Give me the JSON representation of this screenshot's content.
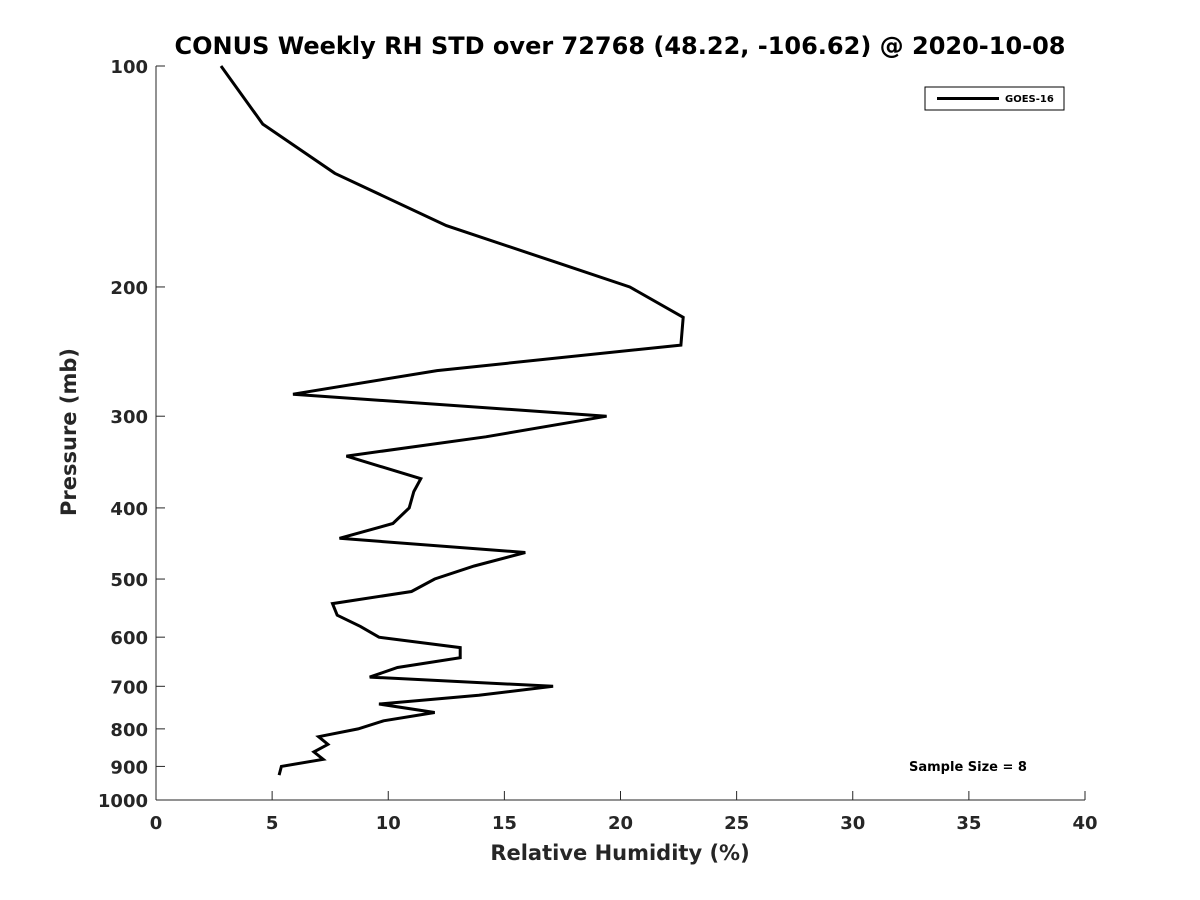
{
  "chart_data": {
    "type": "line",
    "title": "CONUS Weekly RH STD over 72768 (48.22, -106.62) @ 2020-10-08",
    "xlabel": "Relative Humidity (%)",
    "ylabel": "Pressure (mb)",
    "xlim": [
      0,
      40
    ],
    "ylim": [
      100,
      1000
    ],
    "yscale": "log",
    "y_reversed": true,
    "grid": false,
    "legend_position": "top-right",
    "x_ticks": [
      "0",
      "5",
      "10",
      "15",
      "20",
      "25",
      "30",
      "35",
      "40"
    ],
    "y_ticks": [
      "100",
      "200",
      "300",
      "400",
      "500",
      "600",
      "700",
      "800",
      "900",
      "1000"
    ],
    "annotation": "Sample Size = 8",
    "series": [
      {
        "name": "GOES-16",
        "color": "#000000",
        "x": [
          2.8,
          4.6,
          7.7,
          12.5,
          17.2,
          20.4,
          22.7,
          22.6,
          12.1,
          5.9,
          19.4,
          14.2,
          8.2,
          11.4,
          11.1,
          10.9,
          10.2,
          7.9,
          15.9,
          13.7,
          12.0,
          11.0,
          7.6,
          7.8,
          8.8,
          9.6,
          13.1,
          13.1,
          10.4,
          9.2,
          17.1,
          13.9,
          9.6,
          12.0,
          9.8,
          8.7,
          7.0,
          7.4,
          6.8,
          7.2,
          5.4,
          5.3
        ],
        "y": [
          100,
          120,
          140,
          165,
          185,
          200,
          220,
          240,
          260,
          280,
          300,
          320,
          340,
          365,
          380,
          400,
          420,
          440,
          460,
          480,
          500,
          520,
          540,
          560,
          580,
          600,
          620,
          640,
          660,
          680,
          700,
          720,
          740,
          760,
          780,
          800,
          820,
          840,
          860,
          880,
          900,
          925
        ]
      }
    ]
  }
}
